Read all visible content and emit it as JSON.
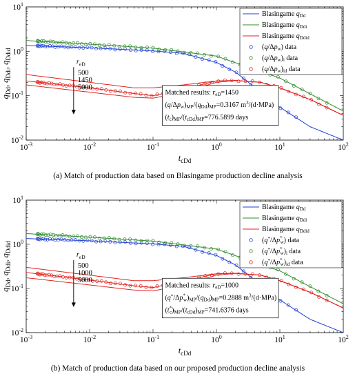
{
  "chart_data": [
    {
      "type": "line",
      "title": "",
      "xlabel": "t_cDd",
      "ylabel": "q_Dd, q_Ddi, q_Ddid",
      "xscale": "log",
      "yscale": "log",
      "xlim": [
        0.001,
        100
      ],
      "ylim": [
        0.01,
        10
      ],
      "x_ticks": [
        "10^-3",
        "10^-2",
        "10^-1",
        "10^0",
        "10^1",
        "10^2"
      ],
      "y_ticks": [
        "10^-2",
        "10^-1",
        "10^0",
        "10^1"
      ],
      "legend_position": "top-right",
      "legend": [
        {
          "base": "Blasingame q",
          "sub": "Dd",
          "color": "#1f3fd6",
          "kind": "line"
        },
        {
          "base": "Blasingame q",
          "sub": "Ddi",
          "color": "#2e8b2e",
          "kind": "line"
        },
        {
          "base": "Blasingame q",
          "sub": "Ddid",
          "color": "#e0221d",
          "kind": "line"
        },
        {
          "base": "(q/Δp",
          "sub": "w",
          "tail": ") data",
          "color": "#1f3fd6",
          "kind": "marker"
        },
        {
          "base": "(q/Δp",
          "sub": "w",
          "tail": ")",
          "sub2": "i",
          "tail2": " data",
          "color": "#2e8b2e",
          "kind": "marker"
        },
        {
          "base": "(q/Δp",
          "sub": "w",
          "tail": ")",
          "sub2": "id",
          "tail2": " data",
          "color": "#e0221d",
          "kind": "marker"
        }
      ],
      "reD_label": "r",
      "reD_sub": "eD",
      "reD_values": [
        "500",
        "1450",
        "5000"
      ],
      "annotation": {
        "line1": "Matched results: r_eD=1450",
        "line2": "(q/Δp_w)_MP/(q_Dd)_MP=0.3167 m³/(d·MPa)",
        "line3": "(t_c)_MP/(t_cDd)_MP=776.5899 days"
      },
      "series": [
        {
          "name": "Blasingame q_Dd",
          "color": "#1f3fd6",
          "x": [
            0.001,
            0.01,
            0.1,
            0.3,
            1,
            2,
            5,
            10,
            30,
            100
          ],
          "y": [
            1.35,
            1.2,
            1.02,
            0.9,
            0.56,
            0.34,
            0.12,
            0.055,
            0.02,
            0.01
          ]
        },
        {
          "name": "Blasingame q_Ddi",
          "color": "#2e8b2e",
          "x": [
            0.001,
            0.01,
            0.1,
            1,
            3,
            10,
            30,
            100
          ],
          "y": [
            1.75,
            1.45,
            1.18,
            0.78,
            0.45,
            0.25,
            0.11,
            0.045
          ]
        },
        {
          "name": "Blasingame q_Ddid, r_eD=500",
          "color": "#e0221d",
          "x": [
            0.001,
            0.01,
            0.05,
            0.1,
            0.3,
            1,
            2,
            5,
            10,
            30,
            100
          ],
          "y": [
            0.3,
            0.2,
            0.15,
            0.15,
            0.175,
            0.215,
            0.22,
            0.2,
            0.15,
            0.082,
            0.036
          ]
        },
        {
          "name": "Blasingame q_Ddid, r_eD=1450",
          "color": "#e0221d",
          "x": [
            0.001,
            0.01,
            0.05,
            0.1,
            0.3,
            1,
            2,
            5,
            10,
            30,
            100
          ],
          "y": [
            0.215,
            0.15,
            0.112,
            0.1,
            0.14,
            0.215,
            0.22,
            0.2,
            0.15,
            0.082,
            0.036
          ]
        },
        {
          "name": "Blasingame q_Ddid, r_eD=5000",
          "color": "#e0221d",
          "x": [
            0.001,
            0.01,
            0.05,
            0.1,
            0.3,
            1,
            2,
            5,
            10,
            30,
            100
          ],
          "y": [
            0.175,
            0.12,
            0.092,
            0.088,
            0.12,
            0.2,
            0.22,
            0.2,
            0.15,
            0.082,
            0.036
          ]
        }
      ],
      "data_series": [
        {
          "name": "(q/Δp_w) data",
          "color": "#1f3fd6",
          "x_range": [
            0.0015,
            18
          ],
          "count": 54
        },
        {
          "name": "(q/Δp_w)_i data",
          "color": "#2e8b2e",
          "x_range": [
            0.0015,
            55
          ],
          "count": 56
        },
        {
          "name": "(q/Δp_w)_id data",
          "color": "#e0221d",
          "x_range": [
            0.0015,
            55
          ],
          "count": 60
        }
      ],
      "caption": "(a)  Match of production data based on Blasingame production decline analysis"
    },
    {
      "type": "line",
      "title": "",
      "xlabel": "t_cDd",
      "ylabel": "q_Dd, q_Ddi, q_Ddid",
      "xscale": "log",
      "yscale": "log",
      "xlim": [
        0.001,
        100
      ],
      "ylim": [
        0.01,
        10
      ],
      "x_ticks": [
        "10^-3",
        "10^-2",
        "10^-1",
        "10^0",
        "10^1",
        "10^2"
      ],
      "y_ticks": [
        "10^-2",
        "10^-1",
        "10^0",
        "10^1"
      ],
      "legend_position": "top-right",
      "legend": [
        {
          "base": "Blasingame q",
          "sub": "Dd",
          "color": "#1f3fd6",
          "kind": "line"
        },
        {
          "base": "Blasingame q",
          "sub": "Ddi",
          "color": "#2e8b2e",
          "kind": "line"
        },
        {
          "base": "Blasingame q",
          "sub": "Ddid",
          "color": "#e0221d",
          "kind": "line"
        },
        {
          "base": "(q*/Δp*",
          "sub": "w",
          "tail": ") data",
          "color": "#1f3fd6",
          "kind": "marker"
        },
        {
          "base": "(q*/Δp*",
          "sub": "w",
          "tail": ")",
          "sub2": "i",
          "tail2": " data",
          "color": "#2e8b2e",
          "kind": "marker"
        },
        {
          "base": "(q*/Δp*",
          "sub": "w",
          "tail": ")",
          "sub2": "id",
          "tail2": " data",
          "color": "#e0221d",
          "kind": "marker"
        }
      ],
      "reD_label": "r",
      "reD_sub": "eD",
      "reD_values": [
        "500",
        "1000",
        "5000"
      ],
      "annotation": {
        "line1": "Matched results: r_eD=1000",
        "line2": "(q*/Δp*_w)_MP/(q_Dd)_MP=0.2888 m³/(d·MPa)",
        "line3": "(t*_c)_MP/(t_cDd)_MP=741.6376 days"
      },
      "series": [
        {
          "name": "Blasingame q_Dd",
          "color": "#1f3fd6",
          "x": [
            0.001,
            0.01,
            0.1,
            0.3,
            1,
            2,
            5,
            10,
            30,
            100
          ],
          "y": [
            1.35,
            1.2,
            1.02,
            0.9,
            0.56,
            0.34,
            0.12,
            0.055,
            0.02,
            0.01
          ]
        },
        {
          "name": "Blasingame q_Ddi",
          "color": "#2e8b2e",
          "x": [
            0.001,
            0.01,
            0.1,
            1,
            3,
            10,
            30,
            100
          ],
          "y": [
            1.75,
            1.45,
            1.18,
            0.78,
            0.45,
            0.25,
            0.11,
            0.045
          ]
        },
        {
          "name": "Blasingame q_Ddid, r_eD=500",
          "color": "#e0221d",
          "x": [
            0.001,
            0.01,
            0.05,
            0.1,
            0.3,
            1,
            2,
            5,
            10,
            30,
            100
          ],
          "y": [
            0.3,
            0.2,
            0.15,
            0.15,
            0.175,
            0.215,
            0.22,
            0.2,
            0.15,
            0.082,
            0.036
          ]
        },
        {
          "name": "Blasingame q_Ddid, r_eD=1000",
          "color": "#e0221d",
          "x": [
            0.001,
            0.01,
            0.05,
            0.1,
            0.3,
            1,
            2,
            5,
            10,
            30,
            100
          ],
          "y": [
            0.23,
            0.155,
            0.115,
            0.105,
            0.145,
            0.215,
            0.22,
            0.2,
            0.15,
            0.082,
            0.036
          ]
        },
        {
          "name": "Blasingame q_Ddid, r_eD=5000",
          "color": "#e0221d",
          "x": [
            0.001,
            0.01,
            0.05,
            0.1,
            0.3,
            1,
            2,
            5,
            10,
            30,
            100
          ],
          "y": [
            0.175,
            0.12,
            0.092,
            0.088,
            0.12,
            0.2,
            0.22,
            0.2,
            0.15,
            0.082,
            0.036
          ]
        }
      ],
      "data_series": [
        {
          "name": "(q*/Δp*_w) data",
          "color": "#1f3fd6",
          "x_range": [
            0.0015,
            18
          ],
          "count": 54
        },
        {
          "name": "(q*/Δp*_w)_i data",
          "color": "#2e8b2e",
          "x_range": [
            0.0015,
            55
          ],
          "count": 56
        },
        {
          "name": "(q*/Δp*_w)_id data",
          "color": "#e0221d",
          "x_range": [
            0.0015,
            55
          ],
          "count": 60
        }
      ],
      "caption": "(b)  Match of production data based on our proposed production decline analysis"
    }
  ]
}
